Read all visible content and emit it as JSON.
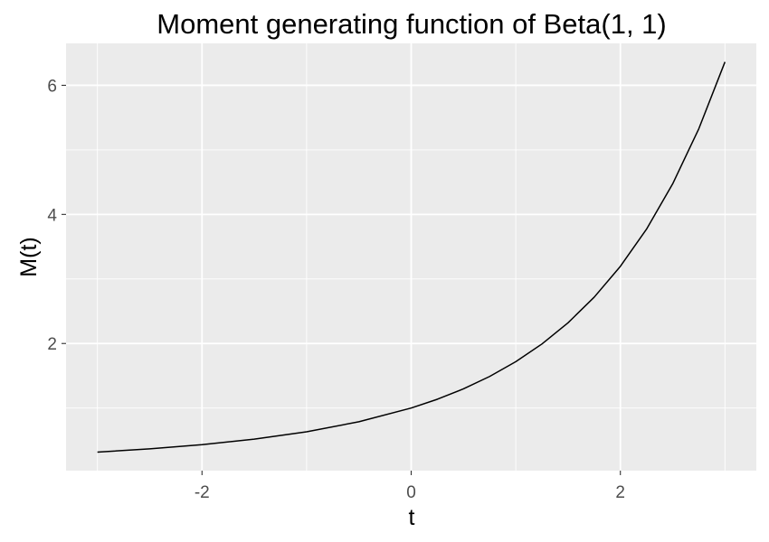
{
  "chart_data": {
    "type": "line",
    "title": "Moment generating function of Beta(1, 1)",
    "xlabel": "t",
    "ylabel": "M(t)",
    "xlim": [
      -3.3,
      3.3
    ],
    "ylim": [
      0.03,
      6.65
    ],
    "x_ticks": [
      -2,
      0,
      2
    ],
    "x_tick_labels": [
      "-2",
      "0",
      "2"
    ],
    "y_ticks": [
      2,
      4,
      6
    ],
    "y_tick_labels": [
      "2",
      "4",
      "6"
    ],
    "x_minor_ticks": [
      -3,
      -1,
      1,
      3
    ],
    "y_minor_ticks": [
      1,
      3,
      5
    ],
    "grid": true,
    "background": "#ebebeb",
    "grid_color": "#ffffff",
    "line_color": "#000000",
    "series": [
      {
        "x": [
          -3.0,
          -2.5,
          -2.0,
          -1.5,
          -1.0,
          -0.5,
          0.0,
          0.25,
          0.5,
          0.75,
          1.0,
          1.25,
          1.5,
          1.75,
          2.0,
          2.25,
          2.5,
          2.75,
          3.0
        ],
        "values": [
          0.317,
          0.367,
          0.432,
          0.518,
          0.632,
          0.787,
          1.0,
          1.136,
          1.297,
          1.489,
          1.718,
          1.992,
          2.321,
          2.718,
          3.195,
          3.771,
          4.473,
          5.327,
          6.362
        ]
      }
    ]
  }
}
